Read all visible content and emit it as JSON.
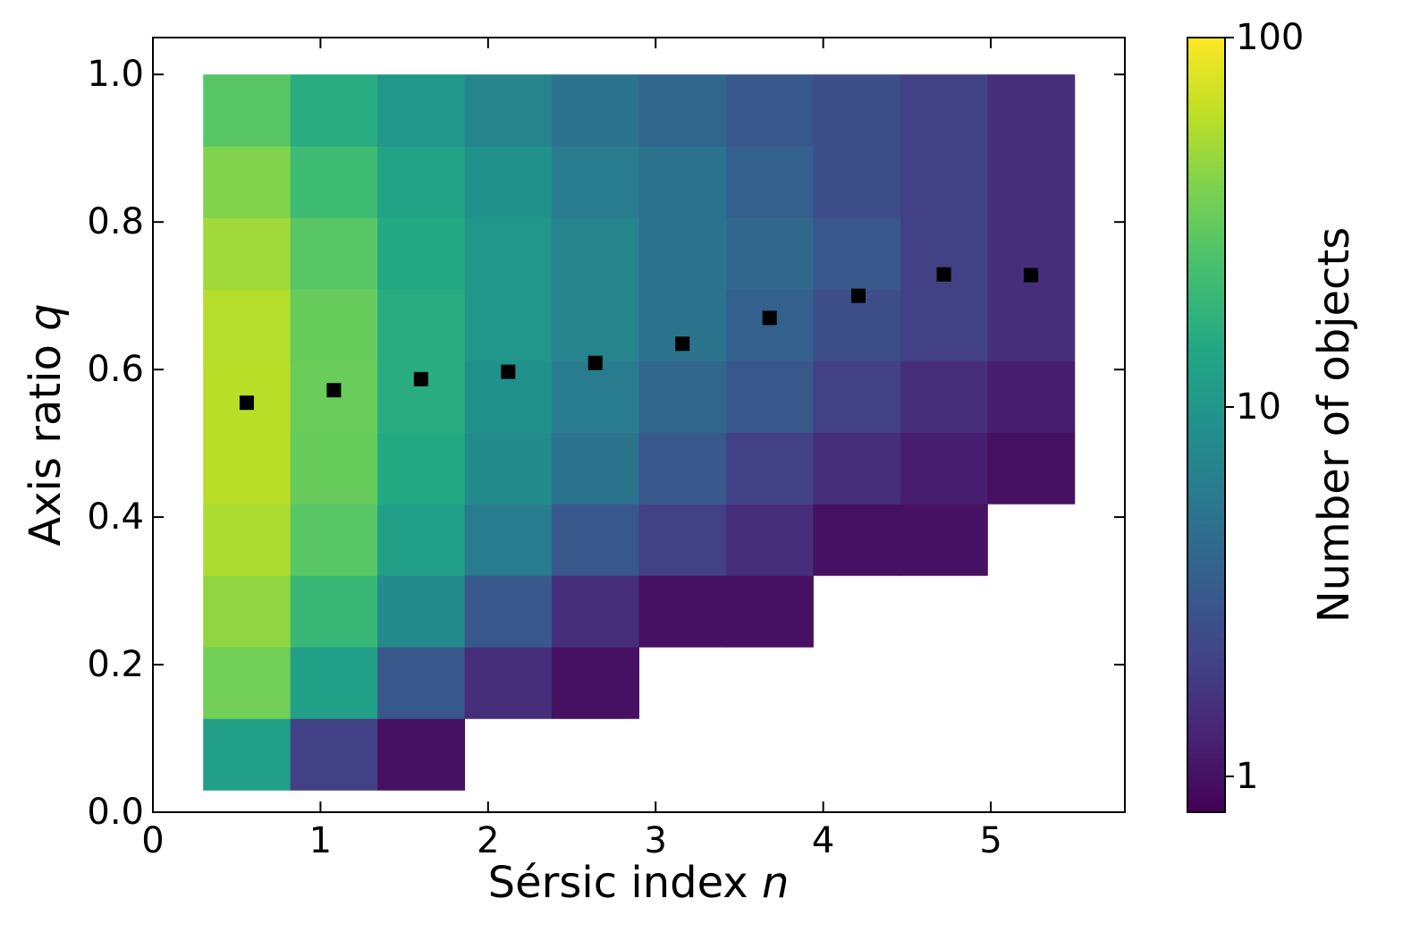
{
  "chart_data": {
    "type": "hist2d",
    "xlabel": {
      "text": "Sérsic index",
      "symbol": "n"
    },
    "ylabel": {
      "text": "Axis ratio",
      "symbol": "q"
    },
    "colorbar_label": "Number of objects",
    "colormap": "viridis",
    "color_scale": "log",
    "x_edges": [
      0.3,
      0.82,
      1.34,
      1.86,
      2.38,
      2.9,
      3.42,
      3.94,
      4.46,
      4.98,
      5.5
    ],
    "y_edges": [
      0.03,
      0.127,
      0.224,
      0.321,
      0.418,
      0.515,
      0.612,
      0.709,
      0.806,
      0.903,
      1.0
    ],
    "z": [
      [
        12,
        2,
        1,
        null,
        null,
        null,
        null,
        null,
        null,
        null
      ],
      [
        35,
        12,
        3,
        1.5,
        1,
        null,
        null,
        null,
        null,
        null
      ],
      [
        45,
        20,
        8,
        3,
        1.5,
        1,
        1,
        null,
        null,
        null
      ],
      [
        55,
        28,
        12,
        6,
        3,
        2,
        1.5,
        1,
        1,
        null
      ],
      [
        60,
        32,
        15,
        8,
        5,
        3,
        2,
        1.5,
        1.2,
        1
      ],
      [
        60,
        33,
        16,
        9,
        6,
        4,
        3,
        2,
        1.5,
        1.2
      ],
      [
        58,
        32,
        16,
        10,
        7,
        5,
        3.5,
        2.5,
        2,
        1.5
      ],
      [
        50,
        28,
        15,
        10,
        7,
        5,
        4,
        3,
        2,
        1.5
      ],
      [
        40,
        22,
        13,
        9,
        6,
        5,
        3.5,
        2.5,
        2,
        1.5
      ],
      [
        28,
        16,
        10,
        7,
        5,
        4,
        3,
        2.5,
        2,
        1.5
      ]
    ],
    "markers": {
      "color": "#000000",
      "x": [
        0.56,
        1.08,
        1.6,
        2.12,
        2.64,
        3.16,
        3.68,
        4.21,
        4.72,
        5.24
      ],
      "y": [
        0.555,
        0.572,
        0.587,
        0.597,
        0.609,
        0.635,
        0.67,
        0.7,
        0.729,
        0.728
      ]
    },
    "xlim": [
      0,
      5.8
    ],
    "ylim": [
      0,
      1.05
    ],
    "xticks": [
      0,
      1,
      2,
      3,
      4,
      5
    ],
    "yticks": [
      {
        "value": 0,
        "label": "0.0"
      },
      0.2,
      0.4,
      0.6,
      0.8,
      {
        "value": 1,
        "label": "1.0"
      }
    ],
    "clim": [
      0.8,
      100
    ],
    "cticks": [
      1,
      10,
      100
    ]
  }
}
